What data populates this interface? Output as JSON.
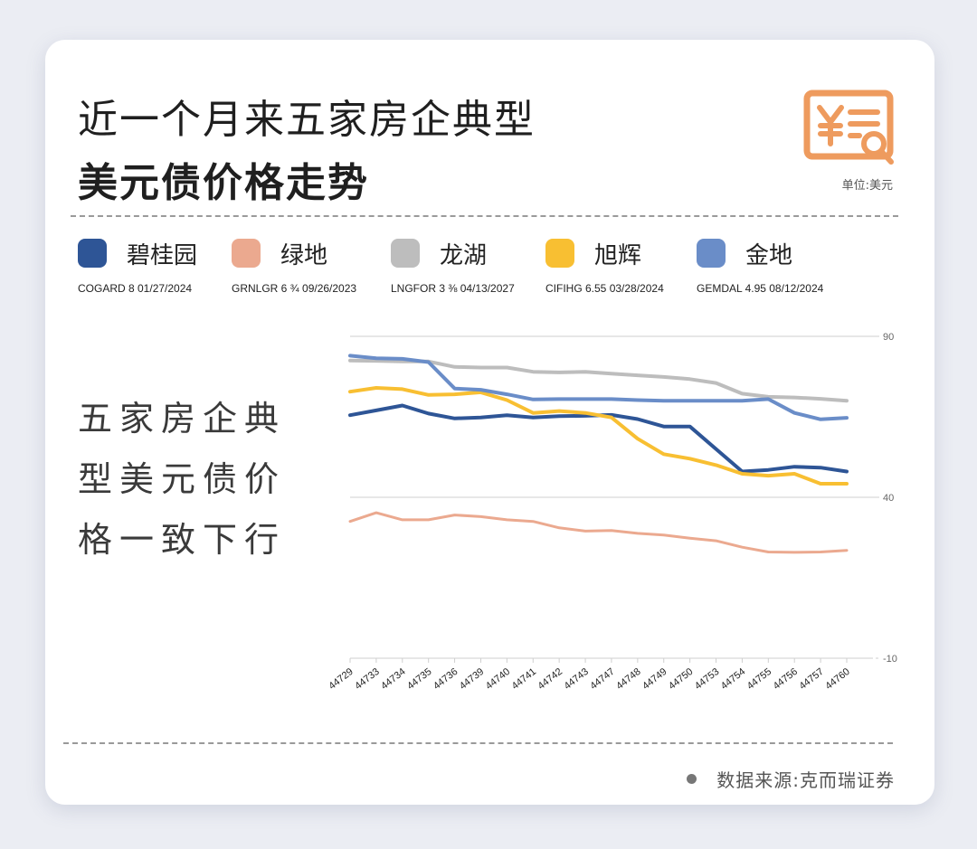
{
  "title": {
    "line1": "近一个月来五家房企典型",
    "line2": "美元债价格走势"
  },
  "logo_icon": "yen-document-search-icon",
  "unit_label": "单位:美元",
  "legend": [
    {
      "name": "碧桂园",
      "bond": "COGARD 8 01/27/2024",
      "color": "#2e5596"
    },
    {
      "name": "绿地",
      "bond": "GRNLGR 6 ¾ 09/26/2023",
      "color": "#eba98f"
    },
    {
      "name": "龙湖",
      "bond": "LNGFOR 3 ⅜ 04/13/2027",
      "color": "#bdbdbd"
    },
    {
      "name": "旭辉",
      "bond": "CIFIHG 6.55 03/28/2024",
      "color": "#f8bf32"
    },
    {
      "name": "金地",
      "bond": "GEMDAL 4.95 08/12/2024",
      "color": "#6a8dc8"
    }
  ],
  "side_text": {
    "line1": "五家房企典",
    "line2": "型美元债价",
    "line3": "格一致下行"
  },
  "source": "数据来源:克而瑞证券",
  "chart_data": {
    "type": "line",
    "x": [
      "44729",
      "44733",
      "44734",
      "44735",
      "44736",
      "44739",
      "44740",
      "44741",
      "44742",
      "44743",
      "44747",
      "44748",
      "44749",
      "44750",
      "44753",
      "44754",
      "44755",
      "44756",
      "44757",
      "44760"
    ],
    "ylim": [
      -10,
      90
    ],
    "y_ticks": [
      "90",
      "40",
      "-10"
    ],
    "series": [
      {
        "name": "碧桂园",
        "color": "#2e5596",
        "values": [
          65.5,
          67,
          68.5,
          66,
          64.5,
          64.8,
          65.5,
          64.8,
          65.2,
          65.3,
          65.6,
          64.3,
          62,
          62,
          55,
          48,
          48.5,
          49.5,
          49.2,
          48
        ],
        "stroke": 4
      },
      {
        "name": "绿地",
        "color": "#eba98f",
        "values": [
          32.5,
          35.2,
          33,
          33,
          34.5,
          34,
          33,
          32.5,
          30.5,
          29.5,
          29.7,
          28.8,
          28.3,
          27.3,
          26.5,
          24.5,
          23,
          22.9,
          23,
          23.5
        ],
        "stroke": 3
      },
      {
        "name": "龙湖",
        "color": "#bdbdbd",
        "values": [
          82.5,
          82.4,
          82.2,
          82.2,
          80.5,
          80.3,
          80.3,
          79,
          78.8,
          79,
          78.4,
          77.9,
          77.4,
          76.7,
          75.5,
          72.2,
          71.2,
          71,
          70.6,
          70
        ],
        "stroke": 4
      },
      {
        "name": "旭辉",
        "color": "#f8bf32",
        "values": [
          72.8,
          74,
          73.6,
          71.8,
          72,
          72.6,
          70.2,
          66.2,
          66.8,
          66.2,
          64.8,
          58.2,
          53.4,
          52,
          50,
          47.3,
          46.7,
          47.3,
          44.2,
          44.2
        ],
        "stroke": 4
      },
      {
        "name": "金地",
        "color": "#6a8dc8",
        "values": [
          84,
          83.2,
          83,
          82,
          73.8,
          73.4,
          72,
          70.4,
          70.5,
          70.5,
          70.5,
          70.2,
          70,
          70,
          70,
          70,
          70.5,
          66.2,
          64.2,
          64.7
        ],
        "stroke": 4
      }
    ]
  }
}
